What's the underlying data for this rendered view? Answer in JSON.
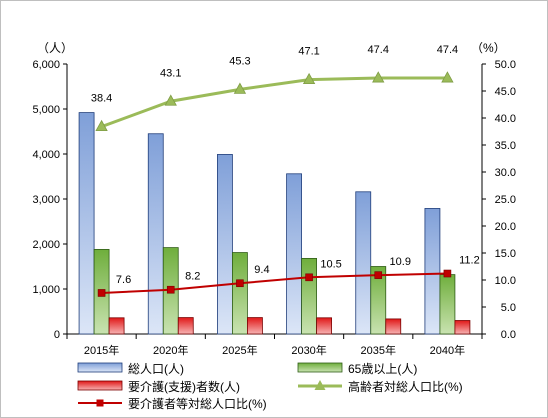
{
  "chart_data": {
    "type": "bar",
    "categories": [
      "2015年",
      "2020年",
      "2025年",
      "2030年",
      "2035年",
      "2040年"
    ],
    "y_left": {
      "unit": "（人）",
      "ticks": [
        "0",
        "1,000",
        "2,000",
        "3,000",
        "4,000",
        "5,000",
        "6,000"
      ],
      "ylim": [
        0,
        6000
      ]
    },
    "y_right": {
      "unit": "（%）",
      "ticks": [
        "0.0",
        "5.0",
        "10.0",
        "15.0",
        "20.0",
        "25.0",
        "30.0",
        "35.0",
        "40.0",
        "45.0",
        "50.0"
      ],
      "ylim": [
        0,
        50
      ]
    },
    "grid": false,
    "legend_position": "bottom",
    "series": [
      {
        "name": "総人口(人)",
        "kind": "bar",
        "axis": "left",
        "color": "#6f8fd0",
        "values": [
          4920,
          4450,
          3990,
          3560,
          3160,
          2790
        ]
      },
      {
        "name": "65歳以上(人)",
        "kind": "bar",
        "axis": "left",
        "color": "#7cbd44",
        "values": [
          1880,
          1920,
          1810,
          1680,
          1500,
          1320
        ]
      },
      {
        "name": "要介護(支援)者数(人)",
        "kind": "bar",
        "axis": "left",
        "color": "#e52424",
        "values": [
          360,
          365,
          365,
          360,
          335,
          300
        ]
      },
      {
        "name": "高齢者対総人口比(%)",
        "kind": "line",
        "axis": "right",
        "color": "#9bbb59",
        "marker": "triangle",
        "values": [
          38.4,
          43.1,
          45.3,
          47.1,
          47.4,
          47.4
        ],
        "labels": [
          "38.4",
          "43.1",
          "45.3",
          "47.1",
          "47.4",
          "47.4"
        ]
      },
      {
        "name": "要介護者等対総人口比(%)",
        "kind": "line",
        "axis": "right",
        "color": "#c00000",
        "marker": "square",
        "values": [
          7.6,
          8.2,
          9.4,
          10.5,
          10.9,
          11.2
        ],
        "labels": [
          "7.6",
          "8.2",
          "9.4",
          "10.5",
          "10.9",
          "11.2"
        ]
      }
    ]
  }
}
